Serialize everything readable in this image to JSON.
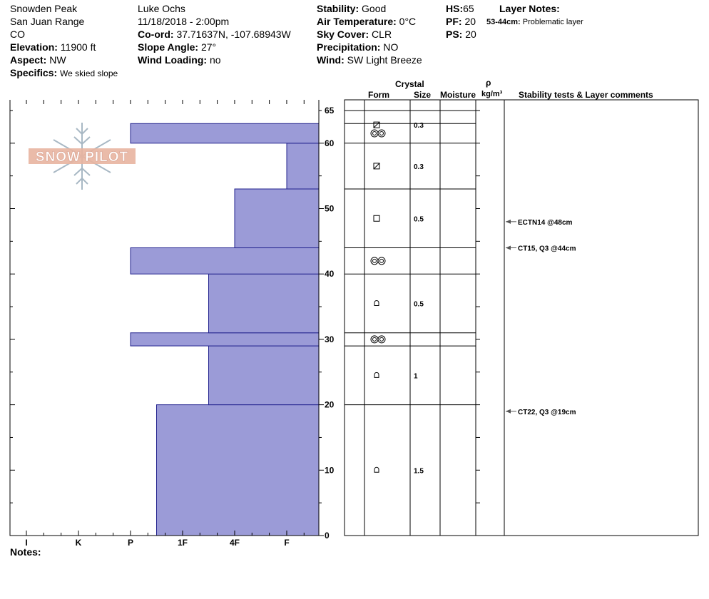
{
  "header": {
    "location": "Snowden Peak",
    "range": "San Juan Range",
    "state": "CO",
    "elevation_label": "Elevation:",
    "elevation": "11900 ft",
    "aspect_label": "Aspect:",
    "aspect": "NW",
    "specifics_label": "Specifics:",
    "specifics": "We skied slope",
    "observer": "Luke Ochs",
    "datetime": "11/18/2018 - 2:00pm",
    "coord_label": "Co-ord:",
    "coord": "37.71637N, -107.68943W",
    "slope_label": "Slope Angle:",
    "slope": "27°",
    "wind_loading_label": "Wind Loading:",
    "wind_loading": "no",
    "stability_label": "Stability:",
    "stability": "Good",
    "air_temp_label": "Air Temperature:",
    "air_temp": "0°C",
    "sky_label": "Sky Cover:",
    "sky": "CLR",
    "precip_label": "Precipitation:",
    "precip": "NO",
    "wind_label": "Wind:",
    "wind": "SW Light Breeze",
    "hs_label": "HS:",
    "hs": "65",
    "pf_label": "PF:",
    "pf": "20",
    "ps_label": "PS:",
    "ps": "20",
    "layer_notes_title": "Layer Notes:",
    "layer_note_range": "53-44cm:",
    "layer_note_text": "Problematic layer"
  },
  "logo_text": "SNOW PILOT",
  "notes_label": "Notes:",
  "table_headers": {
    "crystal": "Crystal",
    "form": "Form",
    "size": "Size",
    "moisture": "Moisture",
    "rho": "ρ",
    "density_unit": "kg/m³",
    "stability": "Stability tests & Layer comments"
  },
  "chart_data": {
    "type": "bar",
    "orientation": "horizontal",
    "ylim": [
      0,
      66
    ],
    "yticks": [
      "0",
      "10",
      "20",
      "30",
      "40",
      "50",
      "60",
      "65"
    ],
    "ytick_values": [
      0,
      10,
      20,
      30,
      40,
      50,
      60,
      65
    ],
    "hardness_categories": [
      "I",
      "K",
      "P",
      "1F",
      "4F",
      "F"
    ],
    "hardness_values": [
      1,
      2,
      3,
      4,
      5,
      6
    ],
    "layers": [
      {
        "bottom": 0,
        "top": 20,
        "hardness": 3.5
      },
      {
        "bottom": 20,
        "top": 29,
        "hardness": 4.5
      },
      {
        "bottom": 29,
        "top": 31,
        "hardness": 3
      },
      {
        "bottom": 31,
        "top": 40,
        "hardness": 4.5
      },
      {
        "bottom": 40,
        "top": 44,
        "hardness": 3
      },
      {
        "bottom": 44,
        "top": 53,
        "hardness": 5
      },
      {
        "bottom": 53,
        "top": 60,
        "hardness": 6
      },
      {
        "bottom": 60,
        "top": 63,
        "hardness": 3
      },
      {
        "bottom": 63,
        "top": 65,
        "hardness": 7
      }
    ],
    "layer_boundaries": [
      20,
      29,
      31,
      40,
      44,
      53,
      60,
      63,
      65
    ],
    "crystals": [
      {
        "height": 62.8,
        "form": "box-slash",
        "size": "0.3"
      },
      {
        "height": 61.5,
        "form": "double-ring",
        "size": ""
      },
      {
        "height": 56.5,
        "form": "box-slash",
        "size": "0.3"
      },
      {
        "height": 48.5,
        "form": "square",
        "size": "0.5"
      },
      {
        "height": 42,
        "form": "double-ring",
        "size": ""
      },
      {
        "height": 35.5,
        "form": "cup",
        "size": "0.5"
      },
      {
        "height": 30,
        "form": "double-ring",
        "size": ""
      },
      {
        "height": 24.5,
        "form": "cup",
        "size": "1"
      },
      {
        "height": 10,
        "form": "cup",
        "size": "1.5"
      }
    ],
    "tests": [
      {
        "height": 48,
        "label": "ECTN14 @48cm"
      },
      {
        "height": 44,
        "label": "CT15, Q3 @44cm"
      },
      {
        "height": 19,
        "label": "CT22, Q3 @19cm"
      }
    ]
  }
}
